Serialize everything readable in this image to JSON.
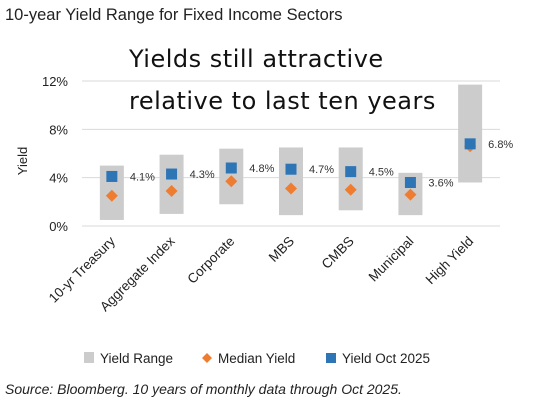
{
  "title": "10-year Yield Range for Fixed Income Sectors",
  "source": "Source: Bloomberg. 10 years of monthly data through Oct 2025.",
  "chart_data": {
    "type": "bar",
    "title": "10-year Yield Range for Fixed Income Sectors",
    "annotation_lines": [
      "Yields still attractive",
      "relative to last ten years"
    ],
    "xlabel": "",
    "ylabel": "Yield",
    "ylim": [
      0,
      12
    ],
    "yticks": [
      0,
      4,
      8,
      12
    ],
    "ytick_labels": [
      "0%",
      "4%",
      "8%",
      "12%"
    ],
    "gridlines": true,
    "legend_position": "bottom",
    "categories": [
      "10-yr Treasury",
      "Aggregate Index",
      "Corporate",
      "MBS",
      "CMBS",
      "Municipal",
      "High Yield"
    ],
    "series": [
      {
        "name": "Yield Range",
        "kind": "range",
        "color": "#cccccc",
        "low": [
          0.5,
          1.0,
          1.8,
          0.9,
          1.3,
          0.9,
          3.6
        ],
        "high": [
          5.0,
          5.9,
          6.4,
          6.5,
          6.5,
          4.4,
          11.7
        ]
      },
      {
        "name": "Median Yield",
        "kind": "marker",
        "shape": "diamond",
        "color": "#ee7d31",
        "values": [
          2.5,
          2.9,
          3.7,
          3.1,
          3.0,
          2.6,
          6.6
        ]
      },
      {
        "name": "Yield Oct 2025",
        "kind": "marker",
        "shape": "square",
        "color": "#2e75b6",
        "values": [
          4.1,
          4.3,
          4.8,
          4.7,
          4.5,
          3.6,
          6.8
        ],
        "labels": [
          "4.1%",
          "4.3%",
          "4.8%",
          "4.7%",
          "4.5%",
          "3.6%",
          "6.8%"
        ]
      }
    ]
  }
}
